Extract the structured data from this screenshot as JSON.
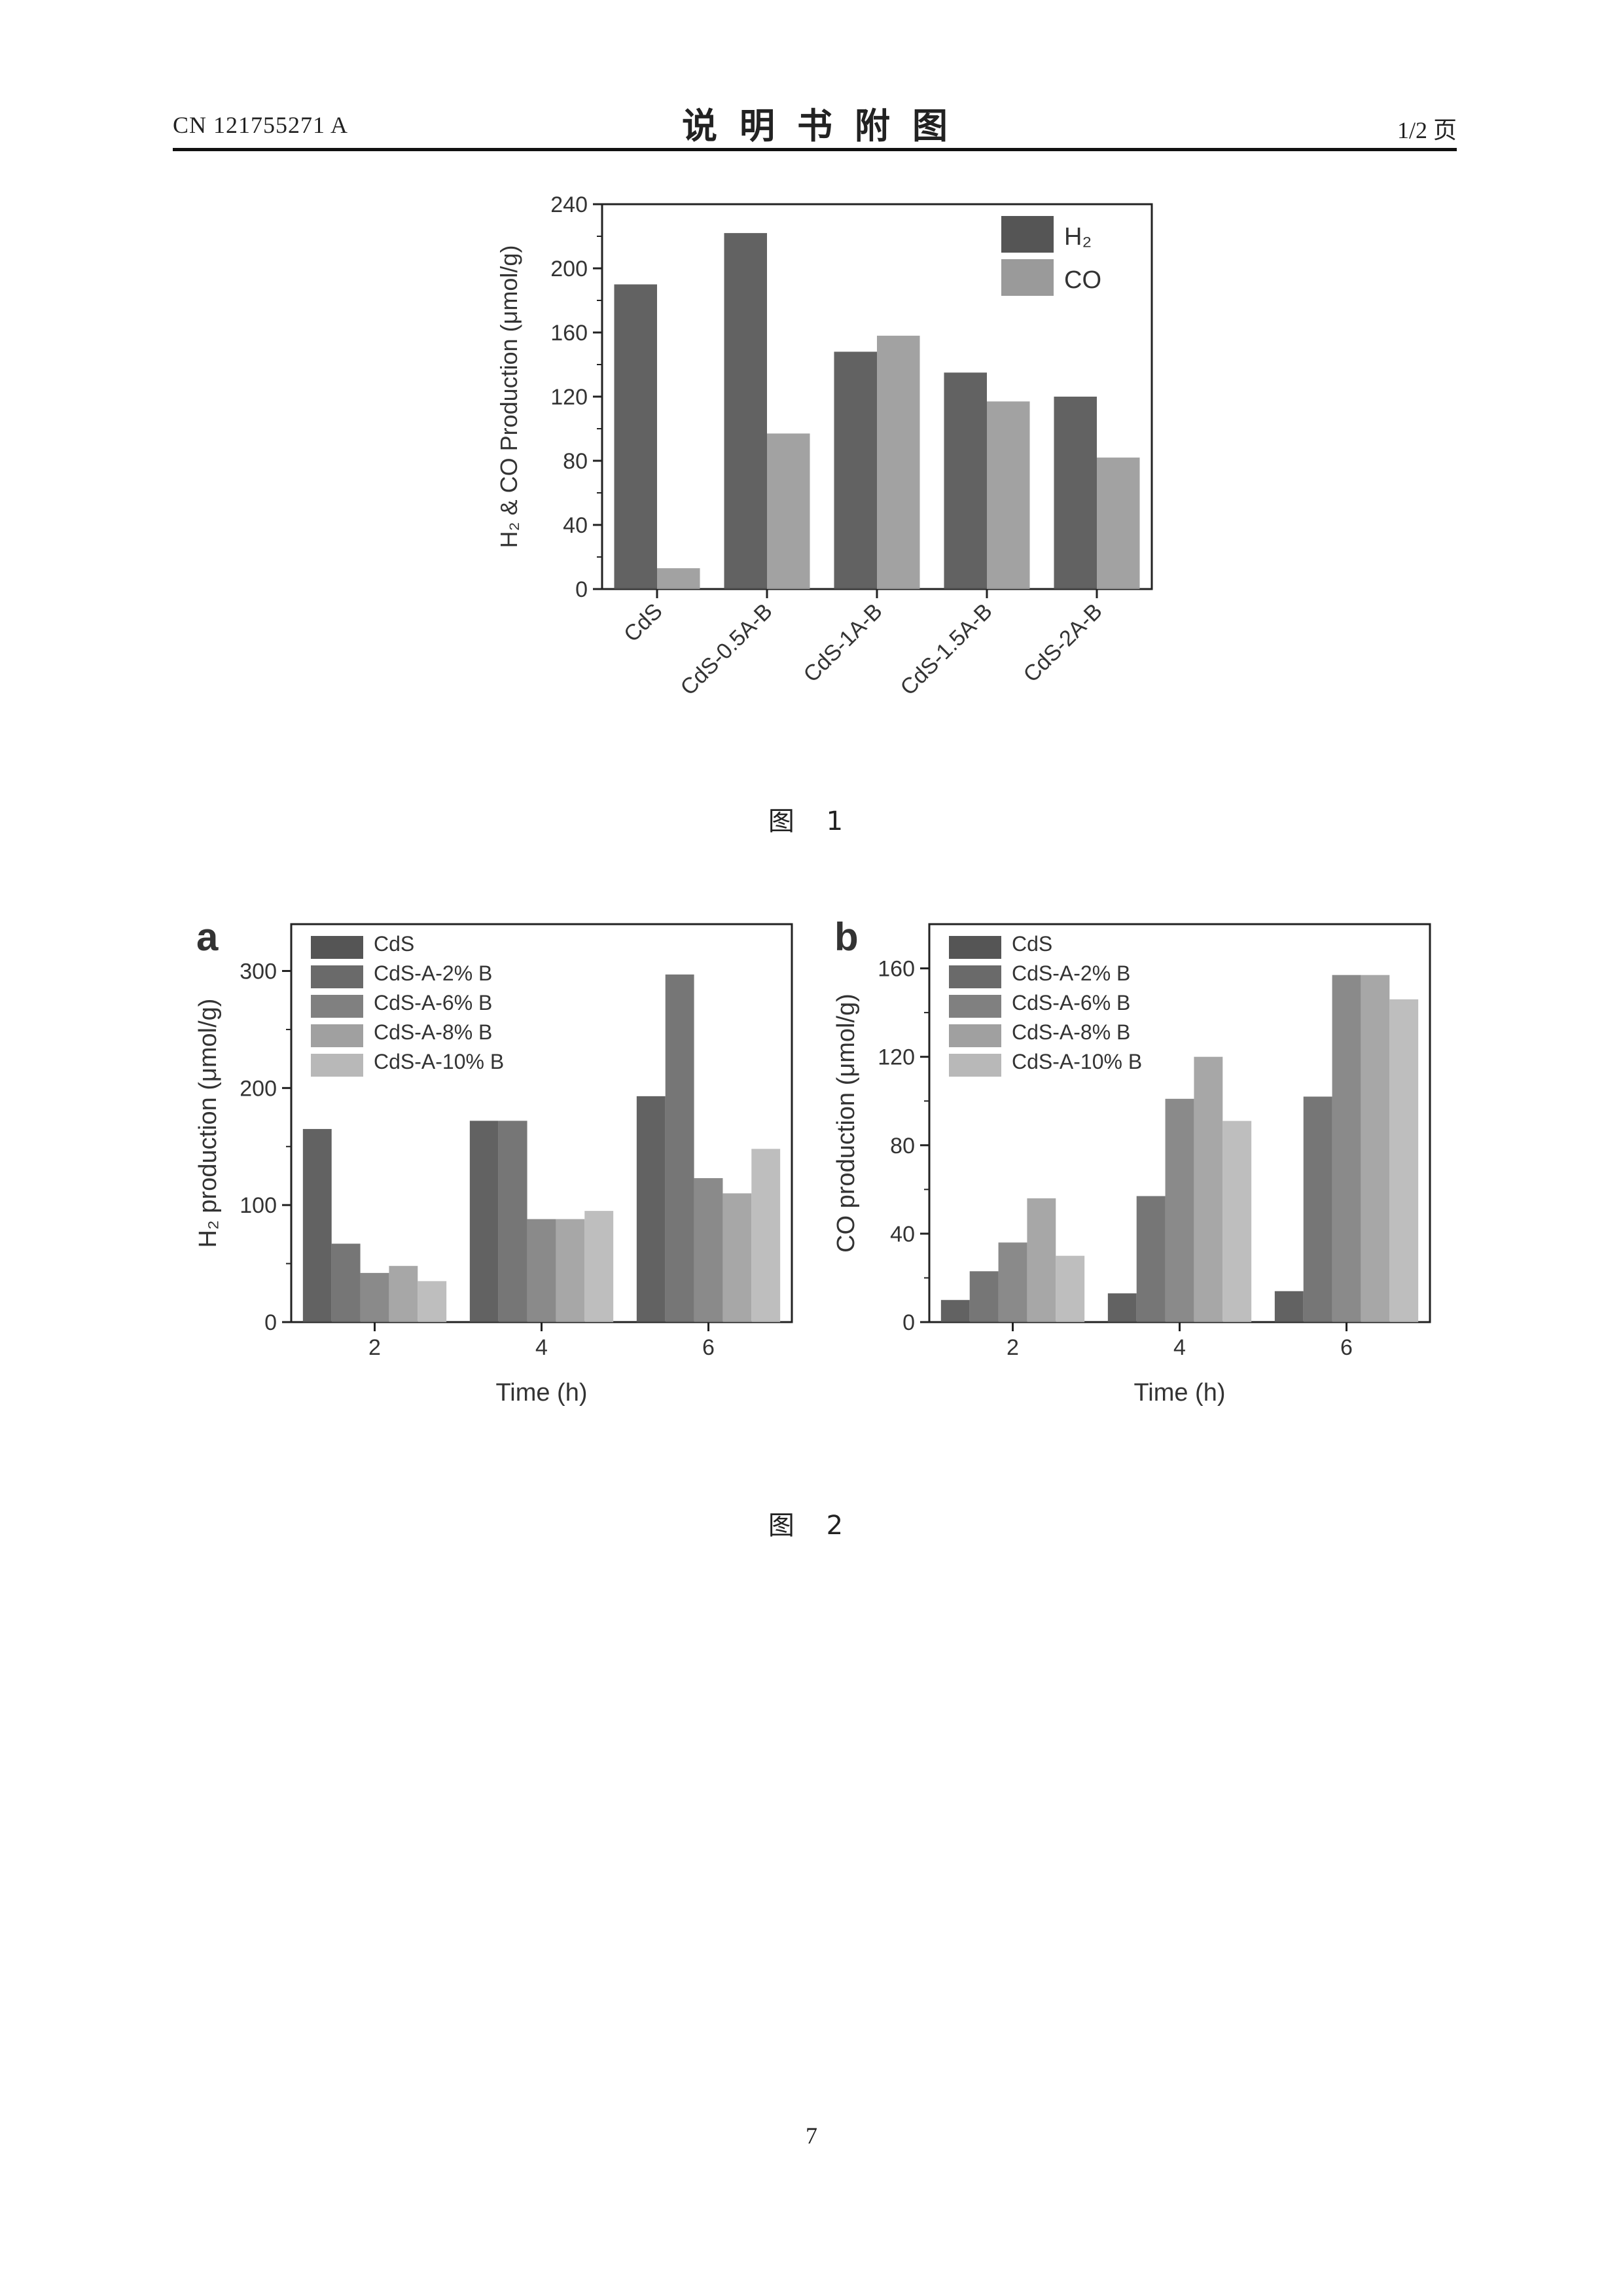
{
  "header": {
    "patent_number": "CN 121755271 A",
    "title": "说明书附图",
    "page_label": "1/2 页"
  },
  "figure1": {
    "caption": "图 1",
    "chart_data": {
      "type": "bar",
      "ylabel": "H₂ & CO Production (μmol/g)",
      "xlabel": "",
      "ylim": [
        0,
        240
      ],
      "yticks": [
        0,
        40,
        80,
        120,
        160,
        200,
        240
      ],
      "categories": [
        "CdS",
        "CdS-0.5A-B",
        "CdS-1A-B",
        "CdS-1.5A-B",
        "CdS-2A-B"
      ],
      "series": [
        {
          "name": "H₂",
          "values": [
            190,
            222,
            148,
            135,
            120
          ],
          "color": "#555555"
        },
        {
          "name": "CO",
          "values": [
            13,
            97,
            158,
            117,
            82
          ],
          "color": "#9a9a9a"
        }
      ],
      "legend": "top-right"
    }
  },
  "figure2": {
    "caption": "图 2",
    "panels": [
      {
        "panel_label": "a",
        "chart_data": {
          "type": "bar",
          "xlabel": "Time (h)",
          "ylabel": "H₂ production (μmol/g)",
          "ylim": [
            0,
            340
          ],
          "yticks": [
            0,
            100,
            200,
            300
          ],
          "categories": [
            "2",
            "4",
            "6"
          ],
          "series": [
            {
              "name": "CdS",
              "values": [
                165,
                172,
                193
              ],
              "color": "#555555"
            },
            {
              "name": "CdS-A-2% B",
              "values": [
                67,
                172,
                297
              ],
              "color": "#6a6a6a"
            },
            {
              "name": "CdS-A-6% B",
              "values": [
                42,
                88,
                123
              ],
              "color": "#808080"
            },
            {
              "name": "CdS-A-8% B",
              "values": [
                48,
                88,
                110
              ],
              "color": "#a0a0a0"
            },
            {
              "name": "CdS-A-10% B",
              "values": [
                35,
                95,
                148
              ],
              "color": "#b8b8b8"
            }
          ],
          "legend": "top-left"
        }
      },
      {
        "panel_label": "b",
        "chart_data": {
          "type": "bar",
          "xlabel": "Time (h)",
          "ylabel": "CO production (μmol/g)",
          "ylim": [
            0,
            180
          ],
          "yticks": [
            0,
            40,
            80,
            120,
            160
          ],
          "categories": [
            "2",
            "4",
            "6"
          ],
          "series": [
            {
              "name": "CdS",
              "values": [
                10,
                13,
                14
              ],
              "color": "#555555"
            },
            {
              "name": "CdS-A-2% B",
              "values": [
                23,
                57,
                102
              ],
              "color": "#6a6a6a"
            },
            {
              "name": "CdS-A-6% B",
              "values": [
                36,
                101,
                157
              ],
              "color": "#808080"
            },
            {
              "name": "CdS-A-8% B",
              "values": [
                56,
                120,
                157
              ],
              "color": "#a0a0a0"
            },
            {
              "name": "CdS-A-10% B",
              "values": [
                30,
                91,
                146
              ],
              "color": "#b8b8b8"
            }
          ],
          "legend": "top-left"
        }
      }
    ]
  },
  "page_number": "7"
}
